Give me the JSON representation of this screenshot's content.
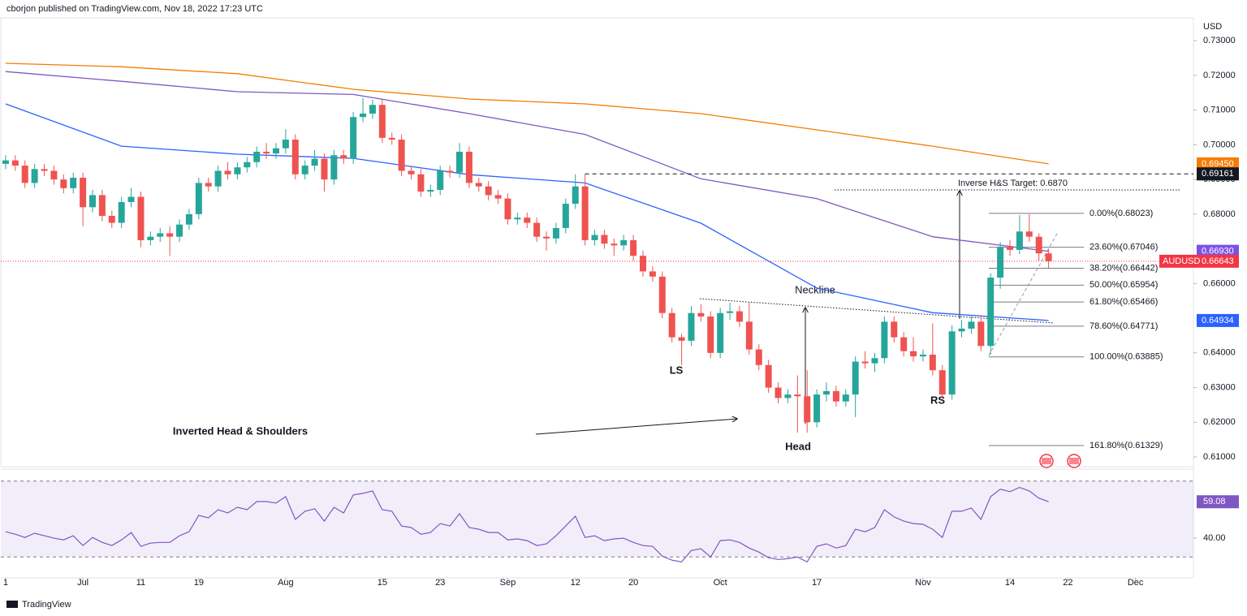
{
  "header": "cborjon published on TradingView.com, Nov 18, 2022 17:23 UTC",
  "footer": "TradingView",
  "chart_data": [
    {
      "type": "candlestick",
      "currency": "USD",
      "xlim": [
        -0.5,
        123
      ],
      "xticks": [
        {
          "value": 0,
          "label": "1"
        },
        {
          "value": 8,
          "label": "Jul"
        },
        {
          "value": 14,
          "label": "11"
        },
        {
          "value": 20,
          "label": "19"
        },
        {
          "value": 29,
          "label": "Aug"
        },
        {
          "value": 39,
          "label": "15"
        },
        {
          "value": 45,
          "label": "23"
        },
        {
          "value": 52,
          "label": "Sep"
        },
        {
          "value": 59,
          "label": "12"
        },
        {
          "value": 65,
          "label": "20"
        },
        {
          "value": 74,
          "label": "Oct"
        },
        {
          "value": 84,
          "label": "17"
        },
        {
          "value": 95,
          "label": "Nov"
        },
        {
          "value": 104,
          "label": "14"
        },
        {
          "value": 110,
          "label": "22"
        },
        {
          "value": 117,
          "label": "Dec"
        }
      ],
      "ylim": [
        0.6072,
        0.7366
      ],
      "yticks": [
        {
          "value": 0.73,
          "label": "0.73000"
        },
        {
          "value": 0.72,
          "label": "0.72000"
        },
        {
          "value": 0.71,
          "label": "0.71000"
        },
        {
          "value": 0.7,
          "label": "0.70000"
        },
        {
          "value": 0.69,
          "label": "0.69000"
        },
        {
          "value": 0.68,
          "label": "0.68000"
        },
        {
          "value": 0.66,
          "label": "0.66000"
        },
        {
          "value": 0.64,
          "label": "0.64000"
        },
        {
          "value": 0.63,
          "label": "0.63000"
        },
        {
          "value": 0.62,
          "label": "0.62000"
        },
        {
          "value": 0.61,
          "label": "0.61000"
        }
      ],
      "up_color": "#26a69a",
      "down_color": "#ef5350",
      "candles": {
        "open": [
          0.6945,
          0.6955,
          0.694,
          0.689,
          0.693,
          0.6925,
          0.69,
          0.6875,
          0.6905,
          0.682,
          0.6855,
          0.6795,
          0.6775,
          0.6835,
          0.685,
          0.6725,
          0.6735,
          0.6745,
          0.6735,
          0.677,
          0.68,
          0.689,
          0.688,
          0.6925,
          0.6915,
          0.6935,
          0.695,
          0.698,
          0.6975,
          0.699,
          0.7015,
          0.6915,
          0.694,
          0.696,
          0.69,
          0.697,
          0.696,
          0.708,
          0.709,
          0.7115,
          0.702,
          0.7015,
          0.6925,
          0.6915,
          0.6865,
          0.687,
          0.6925,
          0.692,
          0.698,
          0.689,
          0.688,
          0.6855,
          0.6845,
          0.6785,
          0.679,
          0.6775,
          0.6735,
          0.673,
          0.676,
          0.683,
          0.688,
          0.6725,
          0.674,
          0.6715,
          0.671,
          0.6725,
          0.668,
          0.6635,
          0.662,
          0.6515,
          0.6445,
          0.6435,
          0.6515,
          0.6505,
          0.64,
          0.6515,
          0.652,
          0.649,
          0.641,
          0.6365,
          0.63,
          0.627,
          0.628,
          0.6275,
          0.62,
          0.628,
          0.629,
          0.626,
          0.628,
          0.6375,
          0.637,
          0.6385,
          0.649,
          0.6445,
          0.6405,
          0.639,
          0.6395,
          0.635,
          0.628,
          0.6462,
          0.647,
          0.649,
          0.642,
          0.6617,
          0.6705,
          0.6697,
          0.675,
          0.6735,
          0.6687
        ],
        "high": [
          0.697,
          0.697,
          0.6955,
          0.6945,
          0.6945,
          0.694,
          0.6915,
          0.692,
          0.692,
          0.687,
          0.687,
          0.681,
          0.685,
          0.6875,
          0.6865,
          0.675,
          0.676,
          0.6765,
          0.6785,
          0.6815,
          0.6905,
          0.6905,
          0.694,
          0.695,
          0.695,
          0.6965,
          0.6995,
          0.7005,
          0.7005,
          0.7045,
          0.703,
          0.6955,
          0.6985,
          0.6975,
          0.6985,
          0.6985,
          0.7095,
          0.7135,
          0.713,
          0.713,
          0.7035,
          0.703,
          0.694,
          0.693,
          0.6885,
          0.694,
          0.694,
          0.7005,
          0.6995,
          0.6905,
          0.6895,
          0.687,
          0.686,
          0.6805,
          0.6805,
          0.679,
          0.675,
          0.6775,
          0.6845,
          0.6915,
          0.6915,
          0.6755,
          0.6755,
          0.673,
          0.674,
          0.674,
          0.6695,
          0.665,
          0.6635,
          0.653,
          0.6455,
          0.6535,
          0.654,
          0.652,
          0.653,
          0.6545,
          0.6535,
          0.6545,
          0.6425,
          0.638,
          0.6315,
          0.6295,
          0.6335,
          0.635,
          0.6295,
          0.6315,
          0.6305,
          0.6295,
          0.639,
          0.6405,
          0.64,
          0.6505,
          0.6505,
          0.646,
          0.6445,
          0.641,
          0.6485,
          0.6365,
          0.648,
          0.6495,
          0.6505,
          0.6505,
          0.663,
          0.672,
          0.6725,
          0.6797,
          0.68,
          0.6745,
          0.67
        ],
        "low": [
          0.693,
          0.6925,
          0.6875,
          0.6875,
          0.691,
          0.6885,
          0.686,
          0.686,
          0.6765,
          0.6805,
          0.678,
          0.676,
          0.676,
          0.682,
          0.6705,
          0.671,
          0.672,
          0.668,
          0.672,
          0.6755,
          0.6785,
          0.6865,
          0.6865,
          0.69,
          0.69,
          0.692,
          0.6935,
          0.696,
          0.696,
          0.6975,
          0.69,
          0.69,
          0.6925,
          0.6865,
          0.6885,
          0.6945,
          0.6945,
          0.7065,
          0.7075,
          0.7005,
          0.7,
          0.691,
          0.69,
          0.685,
          0.685,
          0.6855,
          0.6905,
          0.6905,
          0.6875,
          0.6865,
          0.684,
          0.683,
          0.677,
          0.677,
          0.676,
          0.672,
          0.6695,
          0.6715,
          0.6745,
          0.6815,
          0.671,
          0.671,
          0.67,
          0.668,
          0.6695,
          0.6665,
          0.662,
          0.6605,
          0.65,
          0.643,
          0.6365,
          0.642,
          0.649,
          0.6385,
          0.6385,
          0.6495,
          0.6475,
          0.6395,
          0.635,
          0.6285,
          0.6255,
          0.6255,
          0.617,
          0.617,
          0.6185,
          0.626,
          0.6245,
          0.6245,
          0.6215,
          0.6355,
          0.6345,
          0.637,
          0.643,
          0.639,
          0.6375,
          0.6375,
          0.6335,
          0.6265,
          0.6265,
          0.6445,
          0.6455,
          0.6405,
          0.6395,
          0.6585,
          0.668,
          0.6685,
          0.672,
          0.6665,
          0.6645
        ],
        "close": [
          0.6955,
          0.694,
          0.689,
          0.693,
          0.6925,
          0.69,
          0.6875,
          0.6905,
          0.682,
          0.6855,
          0.6795,
          0.6775,
          0.6835,
          0.685,
          0.6725,
          0.6735,
          0.6745,
          0.6735,
          0.677,
          0.68,
          0.689,
          0.688,
          0.6925,
          0.6915,
          0.6935,
          0.695,
          0.698,
          0.6975,
          0.699,
          0.7015,
          0.6915,
          0.694,
          0.696,
          0.69,
          0.697,
          0.696,
          0.708,
          0.709,
          0.7115,
          0.702,
          0.7015,
          0.6925,
          0.6915,
          0.6865,
          0.687,
          0.6925,
          0.692,
          0.698,
          0.689,
          0.688,
          0.6855,
          0.6845,
          0.6785,
          0.679,
          0.6775,
          0.6735,
          0.673,
          0.676,
          0.683,
          0.688,
          0.6725,
          0.674,
          0.6715,
          0.671,
          0.6725,
          0.668,
          0.6635,
          0.662,
          0.6515,
          0.6445,
          0.6435,
          0.6515,
          0.6505,
          0.64,
          0.6515,
          0.652,
          0.649,
          0.641,
          0.6365,
          0.63,
          0.627,
          0.628,
          0.6275,
          0.62,
          0.628,
          0.629,
          0.626,
          0.628,
          0.6375,
          0.637,
          0.6385,
          0.649,
          0.6445,
          0.6405,
          0.639,
          0.6395,
          0.635,
          0.628,
          0.6462,
          0.647,
          0.649,
          0.642,
          0.6617,
          0.6705,
          0.6697,
          0.675,
          0.6735,
          0.6687,
          0.66643
        ]
      },
      "moving_averages": [
        {
          "color": "#f57c00",
          "x": [
            0,
            12,
            24,
            36,
            48,
            60,
            72,
            84,
            96,
            108
          ],
          "values": [
            0.7235,
            0.7225,
            0.7205,
            0.716,
            0.7132,
            0.7118,
            0.709,
            0.7043,
            0.6996,
            0.6945
          ]
        },
        {
          "color": "#7e57c2",
          "x": [
            0,
            12,
            24,
            36,
            48,
            60,
            72,
            84,
            96,
            108
          ],
          "values": [
            0.7211,
            0.7183,
            0.7153,
            0.7145,
            0.709,
            0.703,
            0.6902,
            0.6845,
            0.6735,
            0.6693
          ]
        },
        {
          "color": "#2962ff",
          "x": [
            0,
            12,
            24,
            36,
            48,
            60,
            72,
            84,
            96,
            108
          ],
          "values": [
            0.7118,
            0.6996,
            0.6973,
            0.6961,
            0.6914,
            0.689,
            0.6774,
            0.6587,
            0.6516,
            0.64934
          ]
        }
      ],
      "price_tags": [
        {
          "label": "0.69450",
          "value": 0.6945,
          "color": "#f57c00"
        },
        {
          "label": "0.69161",
          "value": 0.69161,
          "color": "#131722"
        },
        {
          "label": "0.66930",
          "value": 0.6693,
          "color": "#7b52e6"
        },
        {
          "name": "AUDUSD",
          "label": "0.66643",
          "value": 0.66643,
          "color": "#f23645"
        },
        {
          "label": "0.64934",
          "value": 0.64934,
          "color": "#2962ff"
        }
      ],
      "target": {
        "label": "Inverse H&S Target: 0.6870",
        "value": 0.687
      },
      "fibonacci": [
        {
          "label": "0.00%(0.68023)",
          "value": 0.68023
        },
        {
          "label": "23.60%(0.67046)",
          "value": 0.67046
        },
        {
          "label": "38.20%(0.66442)",
          "value": 0.66442
        },
        {
          "label": "50.00%(0.65954)",
          "value": 0.65954
        },
        {
          "label": "61.80%(0.65466)",
          "value": 0.65466
        },
        {
          "label": "78.60%(0.64771)",
          "value": 0.64771
        },
        {
          "label": "100.00%(0.63885)",
          "value": 0.63885
        },
        {
          "label": "161.80%(0.61329)",
          "value": 0.61329
        }
      ],
      "annotations": {
        "neckline": "Neckline",
        "ls": "LS",
        "head": "Head",
        "rs": "RS",
        "pattern": "Inverted Head & Shoulders"
      }
    },
    {
      "type": "line",
      "color": "#7e57c2",
      "ylim": [
        19,
        75
      ],
      "yticks": [
        {
          "value": 40,
          "label": "40.00"
        }
      ],
      "band": [
        30,
        70
      ],
      "last_value_label": "59.08",
      "values": [
        43.3,
        42.0,
        40.3,
        42.5,
        41.2,
        39.9,
        39.0,
        41.2,
        36.0,
        40.3,
        37.7,
        36.0,
        39.0,
        42.9,
        35.6,
        37.3,
        37.7,
        37.7,
        41.2,
        43.3,
        51.9,
        50.6,
        54.9,
        53.2,
        56.2,
        54.9,
        59.2,
        59.2,
        58.4,
        61.8,
        49.8,
        54.1,
        55.4,
        48.9,
        56.2,
        53.2,
        62.7,
        63.5,
        64.8,
        54.9,
        54.1,
        46.3,
        45.5,
        42.0,
        42.9,
        47.6,
        46.3,
        52.8,
        45.5,
        44.6,
        42.9,
        42.9,
        39.0,
        39.5,
        38.6,
        36.0,
        36.9,
        41.2,
        46.3,
        51.5,
        40.3,
        41.2,
        38.6,
        39.5,
        39.9,
        37.7,
        36.0,
        35.6,
        30.4,
        28.3,
        27.4,
        33.4,
        34.3,
        30.0,
        38.6,
        39.0,
        37.7,
        34.7,
        32.6,
        29.6,
        28.7,
        29.1,
        30.0,
        27.4,
        35.6,
        36.9,
        34.7,
        36.0,
        44.6,
        43.3,
        45.5,
        54.9,
        51.1,
        48.9,
        47.6,
        47.2,
        44.6,
        40.3,
        54.1,
        54.1,
        55.8,
        49.8,
        61.8,
        65.7,
        64.4,
        66.6,
        64.8,
        61.0,
        59.08
      ]
    }
  ]
}
